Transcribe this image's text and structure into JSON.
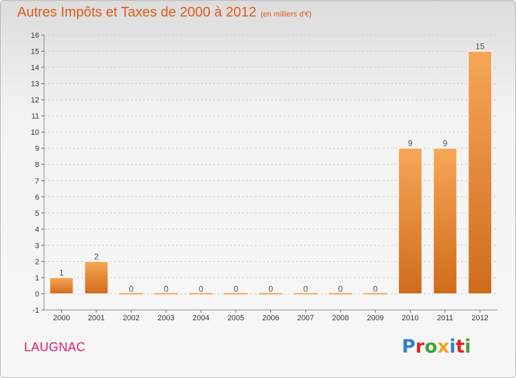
{
  "title": "Autres Impôts et Taxes de 2000 à 2012",
  "unit": "(en milliers d'€)",
  "commune": "LAUGNAC",
  "logo": {
    "text": "Proxiti",
    "letter_colors": [
      "#2f82c8",
      "#e2251e",
      "#3aa43a",
      "#f0a11b",
      "#2f82c8",
      "#e2251e",
      "#3aa43a"
    ]
  },
  "colors": {
    "title": "#e05a1a",
    "commune": "#e0186e",
    "bar_light": "#f6a757",
    "bar_dark": "#cf6c1c",
    "grid": "#cccccc"
  },
  "chart_data": {
    "type": "bar",
    "title": "Autres Impôts et Taxes de 2000 à 2012",
    "subtitle": "(en milliers d'€)",
    "xlabel": "",
    "ylabel": "",
    "categories": [
      "2000",
      "2001",
      "2002",
      "2003",
      "2004",
      "2005",
      "2006",
      "2007",
      "2008",
      "2009",
      "2010",
      "2011",
      "2012"
    ],
    "values": [
      1,
      2,
      0,
      0,
      0,
      0,
      0,
      0,
      0,
      0,
      9,
      9,
      15
    ],
    "ylim": [
      -1,
      16
    ],
    "yticks": [
      -1,
      0,
      1,
      2,
      3,
      4,
      5,
      6,
      7,
      8,
      9,
      10,
      11,
      12,
      13,
      14,
      15,
      16
    ],
    "grid": true,
    "data_labels": true
  }
}
